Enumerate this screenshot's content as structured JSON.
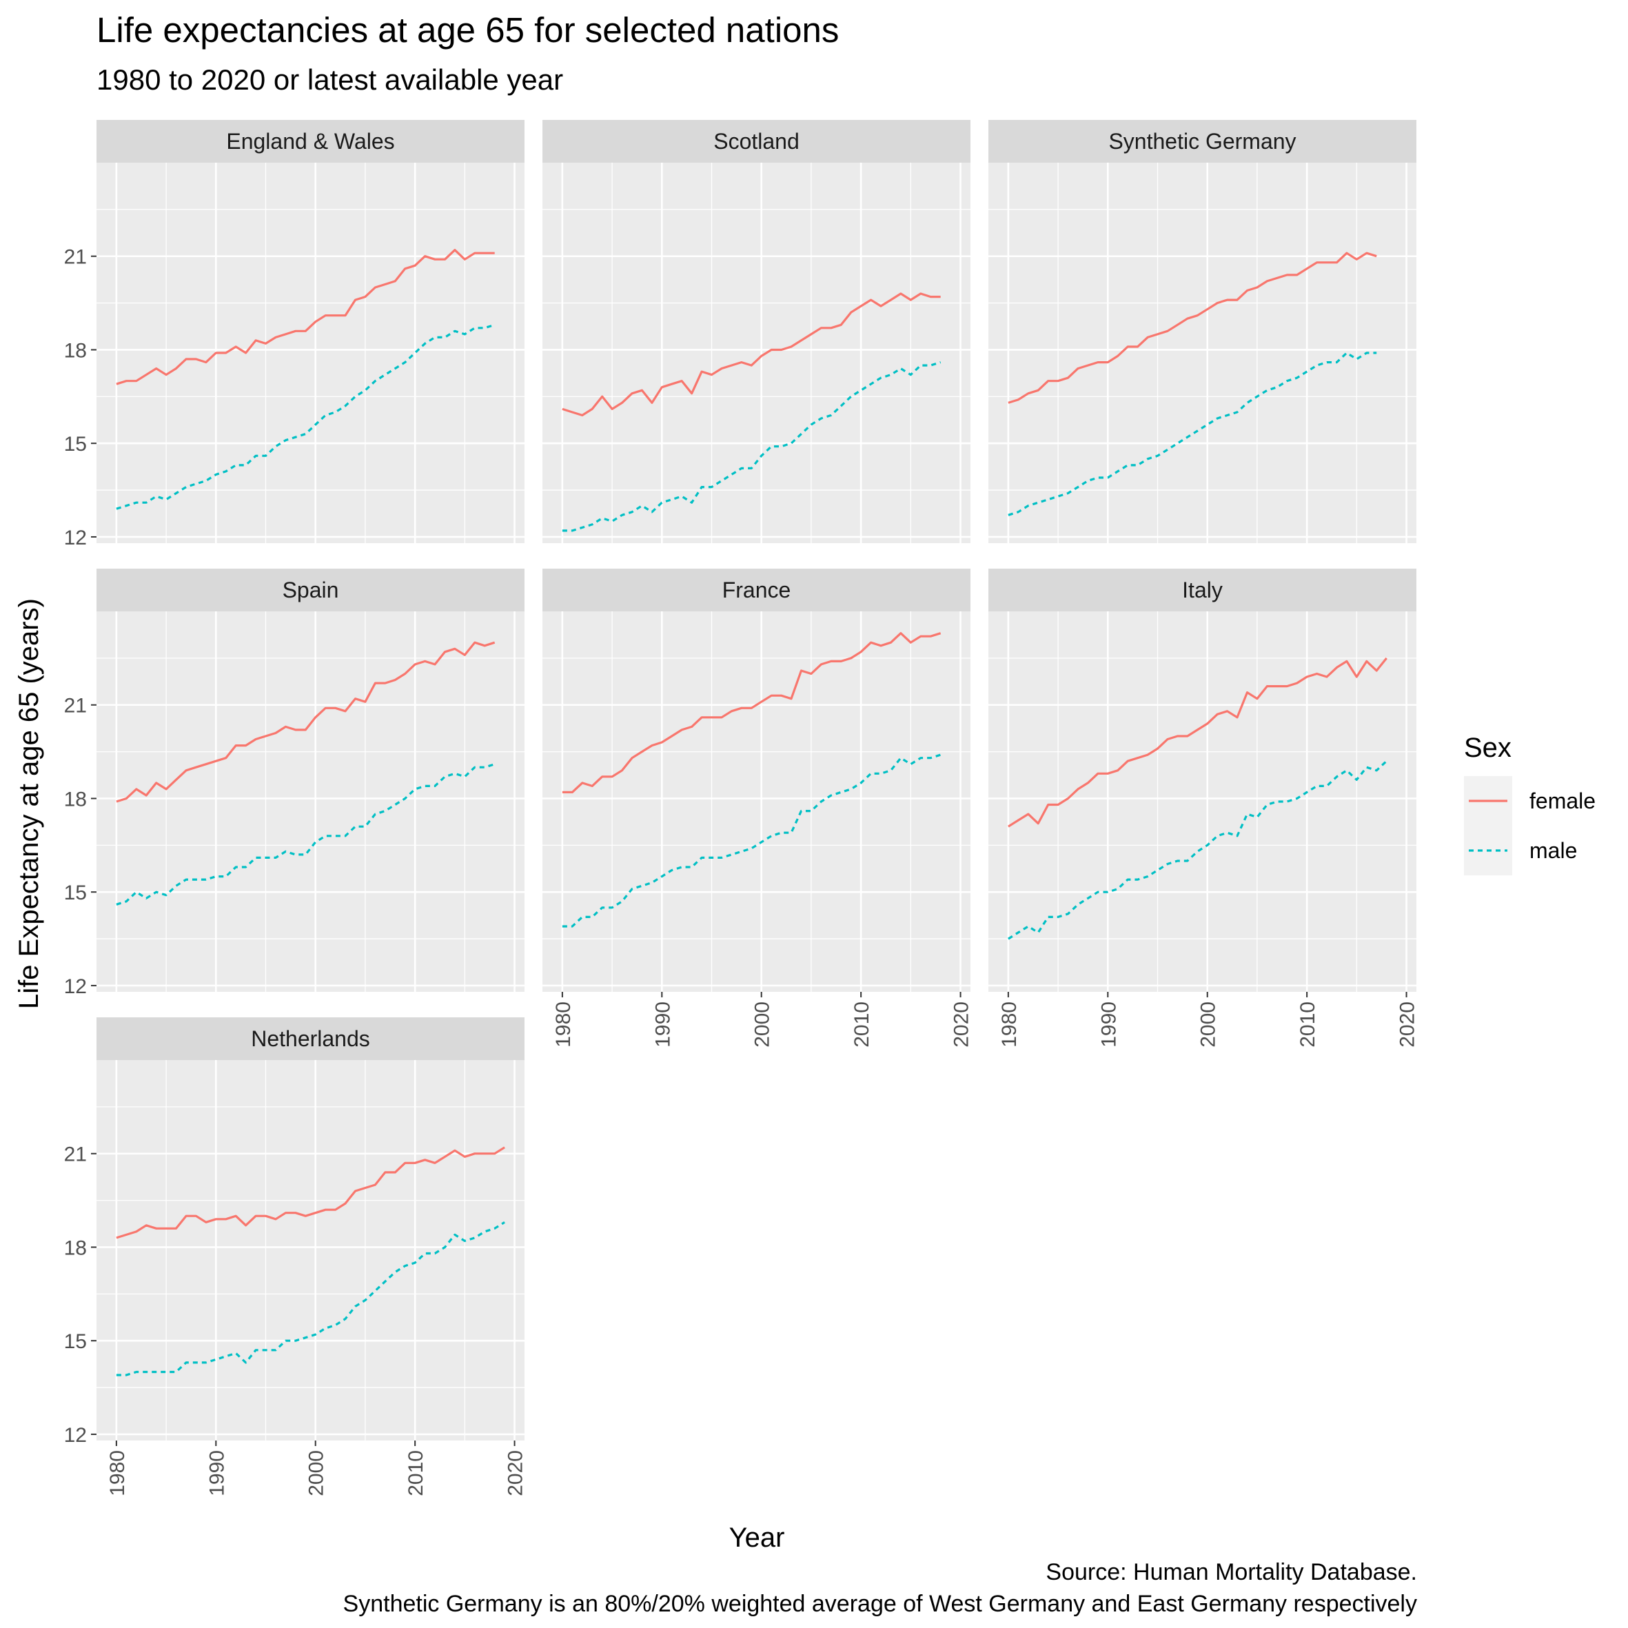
{
  "title": "Life expectancies at age 65 for selected nations",
  "subtitle": "1980 to 2020 or latest available year",
  "caption_line1": "Source: Human Mortality Database.",
  "caption_line2": "Synthetic Germany is an 80%/20% weighted average of West Germany and East Germany respectively",
  "colors": {
    "female": "#F8766D",
    "male": "#00BFC4",
    "panel_bg": "#EBEBEB",
    "strip_bg": "#D9D9D9",
    "grid": "#FFFFFF"
  },
  "chart_data": {
    "type": "line",
    "facet_layout": "3 columns, free x axis, shared y axis",
    "xlabel": "Year",
    "ylabel": "Life Expectancy at age 65 (years)",
    "ylim": [
      11.8,
      24.0
    ],
    "y_ticks": [
      12,
      15,
      18,
      21
    ],
    "x_ticks": [
      1980,
      1990,
      2000,
      2010,
      2020
    ],
    "xlim": [
      1978,
      2021
    ],
    "grid": true,
    "legend": {
      "title": "Sex",
      "position": "right",
      "entries": [
        {
          "label": "female",
          "linetype": "solid"
        },
        {
          "label": "male",
          "linetype": "dashed"
        }
      ]
    },
    "panels": [
      {
        "name": "England & Wales",
        "x_start": 1980,
        "female": [
          16.9,
          17.0,
          17.0,
          17.2,
          17.4,
          17.2,
          17.4,
          17.7,
          17.7,
          17.6,
          17.9,
          17.9,
          18.1,
          17.9,
          18.3,
          18.2,
          18.4,
          18.5,
          18.6,
          18.6,
          18.9,
          19.1,
          19.1,
          19.1,
          19.6,
          19.7,
          20.0,
          20.1,
          20.2,
          20.6,
          20.7,
          21.0,
          20.9,
          20.9,
          21.2,
          20.9,
          21.1,
          21.1,
          21.1
        ],
        "male": [
          12.9,
          13.0,
          13.1,
          13.1,
          13.3,
          13.2,
          13.4,
          13.6,
          13.7,
          13.8,
          14.0,
          14.1,
          14.3,
          14.3,
          14.6,
          14.6,
          14.9,
          15.1,
          15.2,
          15.3,
          15.6,
          15.9,
          16.0,
          16.2,
          16.5,
          16.7,
          17.0,
          17.2,
          17.4,
          17.6,
          17.9,
          18.2,
          18.4,
          18.4,
          18.6,
          18.5,
          18.7,
          18.7,
          18.8
        ]
      },
      {
        "name": "Scotland",
        "x_start": 1980,
        "female": [
          16.1,
          16.0,
          15.9,
          16.1,
          16.5,
          16.1,
          16.3,
          16.6,
          16.7,
          16.3,
          16.8,
          16.9,
          17.0,
          16.6,
          17.3,
          17.2,
          17.4,
          17.5,
          17.6,
          17.5,
          17.8,
          18.0,
          18.0,
          18.1,
          18.3,
          18.5,
          18.7,
          18.7,
          18.8,
          19.2,
          19.4,
          19.6,
          19.4,
          19.6,
          19.8,
          19.6,
          19.8,
          19.7,
          19.7
        ],
        "male": [
          12.2,
          12.2,
          12.3,
          12.4,
          12.6,
          12.5,
          12.7,
          12.8,
          13.0,
          12.8,
          13.1,
          13.2,
          13.3,
          13.1,
          13.6,
          13.6,
          13.8,
          14.0,
          14.2,
          14.2,
          14.6,
          14.9,
          14.9,
          15.0,
          15.3,
          15.6,
          15.8,
          15.9,
          16.2,
          16.5,
          16.7,
          16.9,
          17.1,
          17.2,
          17.4,
          17.2,
          17.5,
          17.5,
          17.6
        ]
      },
      {
        "name": "Synthetic Germany",
        "x_start": 1980,
        "female": [
          16.3,
          16.4,
          16.6,
          16.7,
          17.0,
          17.0,
          17.1,
          17.4,
          17.5,
          17.6,
          17.6,
          17.8,
          18.1,
          18.1,
          18.4,
          18.5,
          18.6,
          18.8,
          19.0,
          19.1,
          19.3,
          19.5,
          19.6,
          19.6,
          19.9,
          20.0,
          20.2,
          20.3,
          20.4,
          20.4,
          20.6,
          20.8,
          20.8,
          20.8,
          21.1,
          20.9,
          21.1,
          21.0
        ],
        "male": [
          12.7,
          12.8,
          13.0,
          13.1,
          13.2,
          13.3,
          13.4,
          13.6,
          13.8,
          13.9,
          13.9,
          14.1,
          14.3,
          14.3,
          14.5,
          14.6,
          14.8,
          15.0,
          15.2,
          15.4,
          15.6,
          15.8,
          15.9,
          16.0,
          16.3,
          16.5,
          16.7,
          16.8,
          17.0,
          17.1,
          17.3,
          17.5,
          17.6,
          17.6,
          17.9,
          17.7,
          17.9,
          17.9
        ]
      },
      {
        "name": "Spain",
        "x_start": 1980,
        "female": [
          17.9,
          18.0,
          18.3,
          18.1,
          18.5,
          18.3,
          18.6,
          18.9,
          19.0,
          19.1,
          19.2,
          19.3,
          19.7,
          19.7,
          19.9,
          20.0,
          20.1,
          20.3,
          20.2,
          20.2,
          20.6,
          20.9,
          20.9,
          20.8,
          21.2,
          21.1,
          21.7,
          21.7,
          21.8,
          22.0,
          22.3,
          22.4,
          22.3,
          22.7,
          22.8,
          22.6,
          23.0,
          22.9,
          23.0
        ],
        "male": [
          14.6,
          14.7,
          15.0,
          14.8,
          15.0,
          14.9,
          15.2,
          15.4,
          15.4,
          15.4,
          15.5,
          15.5,
          15.8,
          15.8,
          16.1,
          16.1,
          16.1,
          16.3,
          16.2,
          16.2,
          16.6,
          16.8,
          16.8,
          16.8,
          17.1,
          17.1,
          17.5,
          17.6,
          17.8,
          18.0,
          18.3,
          18.4,
          18.4,
          18.7,
          18.8,
          18.7,
          19.0,
          19.0,
          19.1
        ]
      },
      {
        "name": "France",
        "x_start": 1980,
        "female": [
          18.2,
          18.2,
          18.5,
          18.4,
          18.7,
          18.7,
          18.9,
          19.3,
          19.5,
          19.7,
          19.8,
          20.0,
          20.2,
          20.3,
          20.6,
          20.6,
          20.6,
          20.8,
          20.9,
          20.9,
          21.1,
          21.3,
          21.3,
          21.2,
          22.1,
          22.0,
          22.3,
          22.4,
          22.4,
          22.5,
          22.7,
          23.0,
          22.9,
          23.0,
          23.3,
          23.0,
          23.2,
          23.2,
          23.3
        ],
        "male": [
          13.9,
          13.9,
          14.2,
          14.2,
          14.5,
          14.5,
          14.7,
          15.1,
          15.2,
          15.3,
          15.5,
          15.7,
          15.8,
          15.8,
          16.1,
          16.1,
          16.1,
          16.2,
          16.3,
          16.4,
          16.6,
          16.8,
          16.9,
          16.9,
          17.6,
          17.6,
          17.9,
          18.1,
          18.2,
          18.3,
          18.5,
          18.8,
          18.8,
          18.9,
          19.3,
          19.1,
          19.3,
          19.3,
          19.4
        ]
      },
      {
        "name": "Italy",
        "x_start": 1980,
        "female": [
          17.1,
          17.3,
          17.5,
          17.2,
          17.8,
          17.8,
          18.0,
          18.3,
          18.5,
          18.8,
          18.8,
          18.9,
          19.2,
          19.3,
          19.4,
          19.6,
          19.9,
          20.0,
          20.0,
          20.2,
          20.4,
          20.7,
          20.8,
          20.6,
          21.4,
          21.2,
          21.6,
          21.6,
          21.6,
          21.7,
          21.9,
          22.0,
          21.9,
          22.2,
          22.4,
          21.9,
          22.4,
          22.1,
          22.5
        ],
        "male": [
          13.5,
          13.7,
          13.9,
          13.7,
          14.2,
          14.2,
          14.3,
          14.6,
          14.8,
          15.0,
          15.0,
          15.1,
          15.4,
          15.4,
          15.5,
          15.7,
          15.9,
          16.0,
          16.0,
          16.3,
          16.5,
          16.8,
          16.9,
          16.8,
          17.5,
          17.4,
          17.8,
          17.9,
          17.9,
          18.0,
          18.2,
          18.4,
          18.4,
          18.7,
          18.9,
          18.6,
          19.0,
          18.9,
          19.2
        ]
      },
      {
        "name": "Netherlands",
        "x_start": 1980,
        "female": [
          18.3,
          18.4,
          18.5,
          18.7,
          18.6,
          18.6,
          18.6,
          19.0,
          19.0,
          18.8,
          18.9,
          18.9,
          19.0,
          18.7,
          19.0,
          19.0,
          18.9,
          19.1,
          19.1,
          19.0,
          19.1,
          19.2,
          19.2,
          19.4,
          19.8,
          19.9,
          20.0,
          20.4,
          20.4,
          20.7,
          20.7,
          20.8,
          20.7,
          20.9,
          21.1,
          20.9,
          21.0,
          21.0,
          21.0,
          21.2
        ],
        "male": [
          13.9,
          13.9,
          14.0,
          14.0,
          14.0,
          14.0,
          14.0,
          14.3,
          14.3,
          14.3,
          14.4,
          14.5,
          14.6,
          14.3,
          14.7,
          14.7,
          14.7,
          15.0,
          15.0,
          15.1,
          15.2,
          15.4,
          15.5,
          15.7,
          16.1,
          16.3,
          16.6,
          16.9,
          17.2,
          17.4,
          17.5,
          17.8,
          17.8,
          18.0,
          18.4,
          18.2,
          18.3,
          18.5,
          18.6,
          18.8
        ]
      }
    ]
  }
}
